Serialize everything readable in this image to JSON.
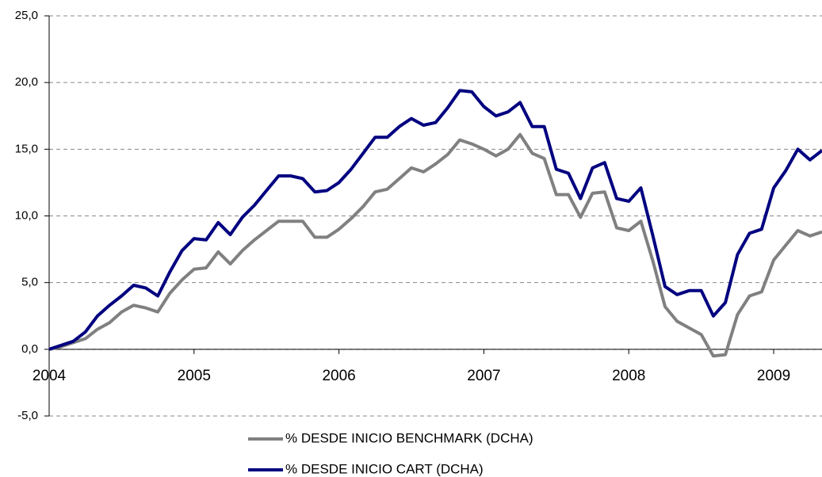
{
  "chart_data": {
    "type": "line",
    "categories": [
      "2004",
      null,
      null,
      null,
      null,
      null,
      null,
      null,
      null,
      null,
      null,
      null,
      "2005",
      null,
      null,
      null,
      null,
      null,
      null,
      null,
      null,
      null,
      null,
      null,
      "2006",
      null,
      null,
      null,
      null,
      null,
      null,
      null,
      null,
      null,
      null,
      null,
      "2007",
      null,
      null,
      null,
      null,
      null,
      null,
      null,
      null,
      null,
      null,
      null,
      "2008",
      null,
      null,
      null,
      null,
      null,
      null,
      null,
      null,
      null,
      null,
      null,
      "2009",
      null,
      null,
      null,
      null
    ],
    "series": [
      {
        "name": "% DESDE INICIO BENCHMARK (DCHA)",
        "color": "#808080",
        "values": [
          0,
          0.2,
          0.5,
          0.8,
          1.5,
          2.0,
          2.8,
          3.3,
          3.1,
          2.8,
          4.2,
          5.2,
          6.0,
          6.1,
          7.3,
          6.4,
          7.4,
          8.2,
          8.9,
          9.6,
          9.6,
          9.6,
          8.4,
          8.4,
          9.0,
          9.8,
          10.7,
          11.8,
          12.0,
          12.8,
          13.6,
          13.3,
          13.9,
          14.6,
          15.7,
          15.4,
          15.0,
          14.5,
          15.0,
          16.1,
          14.7,
          14.3,
          11.6,
          11.6,
          9.9,
          11.7,
          11.8,
          9.1,
          8.9,
          9.6,
          6.6,
          3.2,
          2.1,
          1.6,
          1.1,
          -0.5,
          -0.4,
          2.6,
          4.0,
          4.3,
          6.7,
          7.8,
          8.9,
          8.5,
          8.8
        ]
      },
      {
        "name": "% DESDE INICIO CART (DCHA)",
        "color": "#000080",
        "values": [
          0,
          0.3,
          0.6,
          1.3,
          2.5,
          3.3,
          4.0,
          4.8,
          4.6,
          4.0,
          5.8,
          7.4,
          8.3,
          8.2,
          9.5,
          8.6,
          9.9,
          10.8,
          11.9,
          13.0,
          13.0,
          12.8,
          11.8,
          11.9,
          12.5,
          13.5,
          14.7,
          15.9,
          15.9,
          16.7,
          17.3,
          16.8,
          17.0,
          18.1,
          19.4,
          19.3,
          18.2,
          17.5,
          17.8,
          18.5,
          16.7,
          16.7,
          13.5,
          13.2,
          11.3,
          13.6,
          14.0,
          11.3,
          11.1,
          12.1,
          8.5,
          4.7,
          4.1,
          4.4,
          4.4,
          2.5,
          3.5,
          7.1,
          8.7,
          9.0,
          12.1,
          13.4,
          15.0,
          14.2,
          14.9
        ]
      }
    ],
    "ylim": [
      -5,
      25
    ],
    "yticks": [
      {
        "value": -5,
        "label": "-5,0"
      },
      {
        "value": 0,
        "label": "0,0"
      },
      {
        "value": 5,
        "label": "5,0"
      },
      {
        "value": 10,
        "label": "10,0"
      },
      {
        "value": 15,
        "label": "15,0"
      },
      {
        "value": 20,
        "label": "20,0"
      },
      {
        "value": 25,
        "label": "25,0"
      }
    ],
    "grid": true
  }
}
